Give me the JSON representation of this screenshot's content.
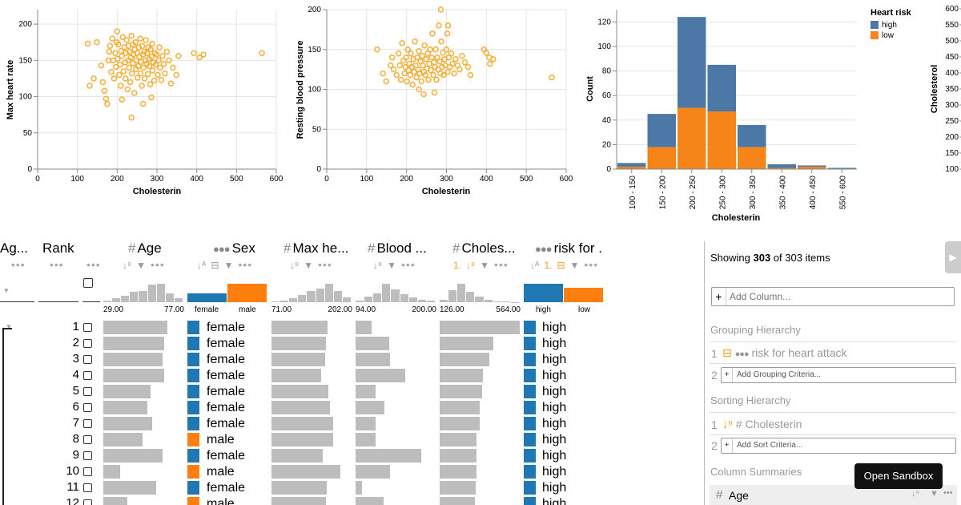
{
  "colors": {
    "point": "#f5a623",
    "high": "#4c78a8",
    "low": "#f58518",
    "sex_female": "#1f77b4",
    "sex_male": "#ff7f0e",
    "risk_high": "#1f77b4",
    "risk_low": "#ff7f0e"
  },
  "chart_data": [
    {
      "type": "scatter",
      "title": "",
      "xlabel": "Cholesterin",
      "ylabel": "Max heart rate",
      "xlim": [
        0,
        600
      ],
      "ylim": [
        0,
        220
      ],
      "xticks": [
        "0",
        "100",
        "200",
        "300",
        "400",
        "500",
        "600"
      ],
      "yticks": [
        "0",
        "50",
        "100",
        "150",
        "200"
      ],
      "ytick_values": [
        0,
        50,
        100,
        150,
        200
      ],
      "xtick_values": [
        0,
        100,
        200,
        300,
        400,
        500,
        600
      ],
      "points": [
        [
          126,
          173
        ],
        [
          131,
          115
        ],
        [
          141,
          125
        ],
        [
          149,
          175
        ],
        [
          160,
          143
        ],
        [
          164,
          120
        ],
        [
          168,
          108
        ],
        [
          172,
          97
        ],
        [
          175,
          90
        ],
        [
          178,
          150
        ],
        [
          180,
          162
        ],
        [
          182,
          170
        ],
        [
          185,
          134
        ],
        [
          188,
          180
        ],
        [
          190,
          150
        ],
        [
          192,
          125
        ],
        [
          195,
          160
        ],
        [
          197,
          141
        ],
        [
          199,
          175
        ],
        [
          200,
          190
        ],
        [
          201,
          152
        ],
        [
          203,
          172
        ],
        [
          205,
          130
        ],
        [
          207,
          144
        ],
        [
          209,
          115
        ],
        [
          210,
          163
        ],
        [
          212,
          156
        ],
        [
          214,
          182
        ],
        [
          216,
          135
        ],
        [
          218,
          168
        ],
        [
          220,
          147
        ],
        [
          221,
          125
        ],
        [
          222,
          160
        ],
        [
          224,
          178
        ],
        [
          226,
          110
        ],
        [
          228,
          150
        ],
        [
          229,
          170
        ],
        [
          230,
          140
        ],
        [
          231,
          162
        ],
        [
          233,
          120
        ],
        [
          234,
          154
        ],
        [
          236,
          184
        ],
        [
          237,
          132
        ],
        [
          239,
          172
        ],
        [
          240,
          146
        ],
        [
          241,
          158
        ],
        [
          243,
          105
        ],
        [
          244,
          165
        ],
        [
          246,
          175
        ],
        [
          247,
          138
        ],
        [
          248,
          150
        ],
        [
          250,
          160
        ],
        [
          251,
          126
        ],
        [
          253,
          142
        ],
        [
          254,
          168
        ],
        [
          256,
          155
        ],
        [
          258,
          180
        ],
        [
          259,
          132
        ],
        [
          260,
          148
        ],
        [
          262,
          115
        ],
        [
          263,
          170
        ],
        [
          265,
          158
        ],
        [
          266,
          140
        ],
        [
          268,
          162
        ],
        [
          269,
          125
        ],
        [
          271,
          150
        ],
        [
          272,
          178
        ],
        [
          274,
          145
        ],
        [
          275,
          160
        ],
        [
          277,
          131
        ],
        [
          278,
          168
        ],
        [
          280,
          152
        ],
        [
          281,
          142
        ],
        [
          283,
          117
        ],
        [
          284,
          165
        ],
        [
          286,
          155
        ],
        [
          288,
          173
        ],
        [
          289,
          136
        ],
        [
          291,
          147
        ],
        [
          293,
          122
        ],
        [
          295,
          160
        ],
        [
          297,
          144
        ],
        [
          299,
          158
        ],
        [
          302,
          130
        ],
        [
          304,
          150
        ],
        [
          306,
          168
        ],
        [
          308,
          140
        ],
        [
          311,
          123
        ],
        [
          314,
          156
        ],
        [
          317,
          145
        ],
        [
          320,
          132
        ],
        [
          325,
          162
        ],
        [
          330,
          150
        ],
        [
          335,
          118
        ],
        [
          340,
          140
        ],
        [
          349,
          130
        ],
        [
          354,
          156
        ],
        [
          393,
          160
        ],
        [
          407,
          154
        ],
        [
          417,
          158
        ],
        [
          564,
          160
        ],
        [
          236,
          71
        ],
        [
          212,
          96
        ],
        [
          286,
          99
        ],
        [
          265,
          90
        ]
      ]
    },
    {
      "type": "scatter",
      "title": "",
      "xlabel": "Cholesterin",
      "ylabel": "Resting blood pressure",
      "xlim": [
        0,
        600
      ],
      "ylim": [
        0,
        200
      ],
      "xticks": [
        "0",
        "100",
        "200",
        "300",
        "400",
        "500",
        "600"
      ],
      "yticks": [
        "0",
        "50",
        "100",
        "150",
        "200"
      ],
      "ytick_values": [
        0,
        50,
        100,
        150,
        200
      ],
      "xtick_values": [
        0,
        100,
        200,
        300,
        400,
        500,
        600
      ],
      "points": [
        [
          126,
          150
        ],
        [
          141,
          120
        ],
        [
          149,
          110
        ],
        [
          160,
          130
        ],
        [
          164,
          140
        ],
        [
          168,
          125
        ],
        [
          175,
          118
        ],
        [
          180,
          145
        ],
        [
          183,
          130
        ],
        [
          186,
          112
        ],
        [
          189,
          158
        ],
        [
          192,
          136
        ],
        [
          195,
          120
        ],
        [
          197,
          128
        ],
        [
          199,
          140
        ],
        [
          201,
          110
        ],
        [
          203,
          150
        ],
        [
          205,
          124
        ],
        [
          207,
          132
        ],
        [
          209,
          118
        ],
        [
          211,
          145
        ],
        [
          213,
          128
        ],
        [
          215,
          106
        ],
        [
          217,
          138
        ],
        [
          219,
          122
        ],
        [
          221,
          160
        ],
        [
          223,
          130
        ],
        [
          225,
          115
        ],
        [
          227,
          140
        ],
        [
          229,
          125
        ],
        [
          231,
          148
        ],
        [
          233,
          120
        ],
        [
          235,
          135
        ],
        [
          237,
          110
        ],
        [
          239,
          142
        ],
        [
          241,
          130
        ],
        [
          243,
          122
        ],
        [
          245,
          155
        ],
        [
          247,
          118
        ],
        [
          249,
          138
        ],
        [
          251,
          126
        ],
        [
          253,
          145
        ],
        [
          255,
          112
        ],
        [
          257,
          132
        ],
        [
          259,
          150
        ],
        [
          261,
          124
        ],
        [
          263,
          140
        ],
        [
          265,
          170
        ],
        [
          267,
          118
        ],
        [
          269,
          134
        ],
        [
          271,
          128
        ],
        [
          273,
          150
        ],
        [
          275,
          112
        ],
        [
          277,
          140
        ],
        [
          279,
          125
        ],
        [
          281,
          180
        ],
        [
          283,
          135
        ],
        [
          285,
          120
        ],
        [
          287,
          160
        ],
        [
          289,
          128
        ],
        [
          291,
          146
        ],
        [
          293,
          118
        ],
        [
          295,
          138
        ],
        [
          297,
          130
        ],
        [
          300,
          150
        ],
        [
          303,
          122
        ],
        [
          306,
          140
        ],
        [
          309,
          128
        ],
        [
          312,
          145
        ],
        [
          315,
          132
        ],
        [
          319,
          120
        ],
        [
          323,
          138
        ],
        [
          328,
          130
        ],
        [
          333,
          125
        ],
        [
          339,
          142
        ],
        [
          346,
          134
        ],
        [
          354,
          128
        ],
        [
          360,
          118
        ],
        [
          394,
          150
        ],
        [
          400,
          146
        ],
        [
          407,
          140
        ],
        [
          409,
          132
        ],
        [
          417,
          138
        ],
        [
          564,
          115
        ],
        [
          286,
          200
        ],
        [
          231,
          100
        ],
        [
          243,
          94
        ],
        [
          270,
          96
        ],
        [
          302,
          170
        ],
        [
          304,
          180
        ]
      ]
    },
    {
      "type": "bar",
      "stacked": true,
      "title": "",
      "xlabel": "Cholesterin",
      "ylabel": "Count",
      "categories": [
        "100 - 150",
        "150 - 200",
        "200 - 250",
        "250 - 300",
        "300 - 350",
        "350 - 400",
        "400 - 450",
        "550 - 600"
      ],
      "ylim": [
        0,
        130
      ],
      "yticks": [
        "0",
        "20",
        "40",
        "60",
        "80",
        "100",
        "120"
      ],
      "ytick_values": [
        0,
        20,
        40,
        60,
        80,
        100,
        120
      ],
      "series": [
        {
          "name": "low",
          "values": [
            2,
            18,
            50,
            47,
            18,
            1,
            2,
            0
          ]
        },
        {
          "name": "high",
          "values": [
            3,
            27,
            74,
            38,
            18,
            3,
            1,
            1
          ]
        }
      ],
      "legend": {
        "title": "Heart risk",
        "entries": [
          "high",
          "low"
        ],
        "placement": "top-right"
      }
    }
  ],
  "cut_axis": {
    "title": "Cholesterol",
    "ticks": [
      "600",
      "550",
      "500",
      "450",
      "400",
      "350",
      "300",
      "250",
      "200",
      "150",
      "100"
    ]
  },
  "lineup": {
    "columns": {
      "agg": {
        "label": "Ag..."
      },
      "rank": {
        "label": "Rank"
      },
      "age": {
        "label": "Age",
        "min": "29.00",
        "max": "77.00"
      },
      "sex": {
        "label": "Sex",
        "cats": [
          "female",
          "male"
        ]
      },
      "maxhr": {
        "label": "Max he...",
        "min": "71.00",
        "max": "202.00"
      },
      "blood": {
        "label": "Blood ...",
        "min": "94.00",
        "max": "200.00"
      },
      "chol": {
        "label": "Choles...",
        "min": "126.00",
        "max": "564.00",
        "sort_badge": "1."
      },
      "risk": {
        "label": "risk for ...",
        "cats": [
          "high",
          "low"
        ],
        "group_badge": "1."
      }
    },
    "hist": {
      "age": [
        0.1,
        0.22,
        0.35,
        0.55,
        0.6,
        0.95,
        1.0,
        0.5,
        0.2
      ],
      "maxhr": [
        0.05,
        0.1,
        0.2,
        0.4,
        0.6,
        0.75,
        1.0,
        0.6,
        0.25
      ],
      "blood": [
        0.1,
        0.3,
        0.5,
        1.0,
        0.7,
        0.45,
        0.25,
        0.15,
        0.08
      ],
      "chol": [
        0.15,
        0.65,
        1.0,
        0.55,
        0.3,
        0.15,
        0.05,
        0.03,
        0.02
      ],
      "sex": [
        0.46,
        1.0
      ],
      "risk": [
        1.0,
        0.78
      ]
    },
    "rows": [
      {
        "rank": "1",
        "age": 0.8,
        "sex": "female",
        "maxhr": 0.7,
        "blood": 0.2,
        "chol": 1.0,
        "risk": "high"
      },
      {
        "rank": "2",
        "age": 0.76,
        "sex": "female",
        "maxhr": 0.68,
        "blood": 0.42,
        "chol": 0.67,
        "risk": "high"
      },
      {
        "rank": "3",
        "age": 0.74,
        "sex": "female",
        "maxhr": 0.67,
        "blood": 0.43,
        "chol": 0.62,
        "risk": "high"
      },
      {
        "rank": "4",
        "age": 0.76,
        "sex": "female",
        "maxhr": 0.62,
        "blood": 0.62,
        "chol": 0.54,
        "risk": "high"
      },
      {
        "rank": "5",
        "age": 0.59,
        "sex": "female",
        "maxhr": 0.71,
        "blood": 0.25,
        "chol": 0.53,
        "risk": "high"
      },
      {
        "rank": "6",
        "age": 0.55,
        "sex": "female",
        "maxhr": 0.73,
        "blood": 0.36,
        "chol": 0.5,
        "risk": "high"
      },
      {
        "rank": "7",
        "age": 0.61,
        "sex": "female",
        "maxhr": 0.77,
        "blood": 0.25,
        "chol": 0.5,
        "risk": "high"
      },
      {
        "rank": "8",
        "age": 0.49,
        "sex": "male",
        "maxhr": 0.77,
        "blood": 0.25,
        "chol": 0.46,
        "risk": "high"
      },
      {
        "rank": "9",
        "age": 0.74,
        "sex": "female",
        "maxhr": 0.64,
        "blood": 0.82,
        "chol": 0.46,
        "risk": "high"
      },
      {
        "rank": "10",
        "age": 0.21,
        "sex": "male",
        "maxhr": 0.86,
        "blood": 0.43,
        "chol": 0.46,
        "risk": "high"
      },
      {
        "rank": "11",
        "age": 0.66,
        "sex": "female",
        "maxhr": 0.69,
        "blood": 0.08,
        "chol": 0.45,
        "risk": "high"
      },
      {
        "rank": "12",
        "age": 0.3,
        "sex": "male",
        "maxhr": 0.68,
        "blood": 0.35,
        "chol": 0.44,
        "risk": "high"
      }
    ]
  },
  "panel": {
    "showing_prefix": "Showing ",
    "showing_count": "303",
    "showing_suffix": " of 303 items",
    "add_column_placeholder": "Add Column...",
    "grouping_title": "Grouping Hierarchy",
    "grouping_item_no": "1",
    "grouping_item": "risk for heart attack",
    "grouping_add_no": "2",
    "grouping_add": "Add Grouping Criteria...",
    "sorting_title": "Sorting Hierarchy",
    "sorting_item_no": "1",
    "sorting_item": "Cholesterin",
    "sorting_add_no": "2",
    "sorting_add": "Add Sort Criteria...",
    "summaries_title": "Column Summaries",
    "summary_item": "Age"
  },
  "tooltip": "Open Sandbox"
}
